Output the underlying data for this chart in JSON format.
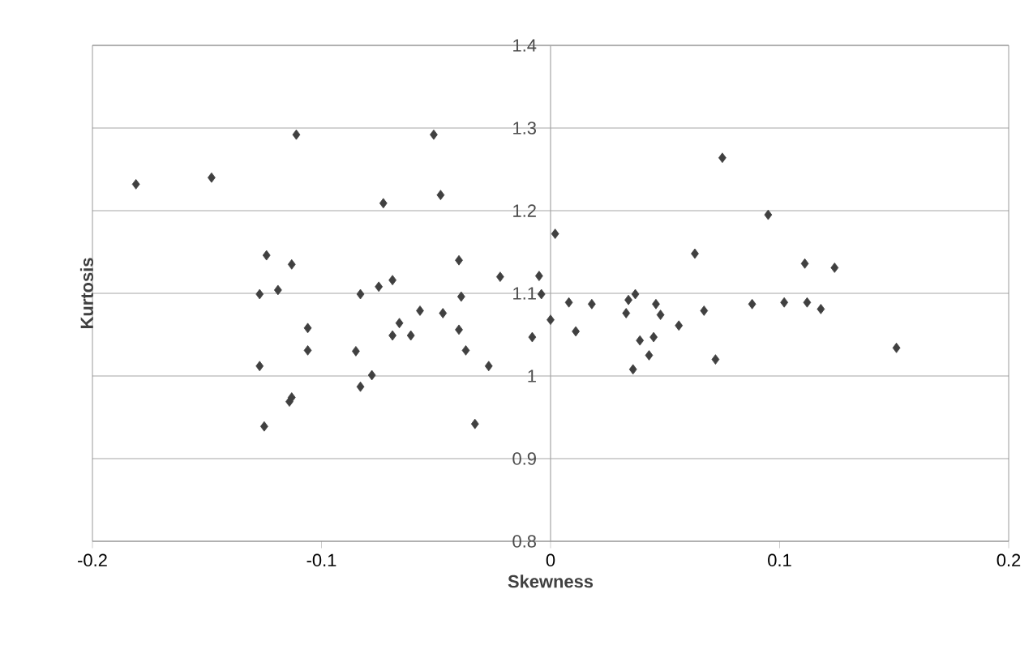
{
  "chart_data": {
    "type": "scatter",
    "xlabel": "Skewness",
    "ylabel": "Kurtosis",
    "xlim": [
      -0.2,
      0.2
    ],
    "ylim": [
      0.8,
      1.4
    ],
    "xticks": [
      -0.2,
      -0.1,
      0,
      0.1,
      0.2
    ],
    "yticks": [
      0.8,
      0.9,
      1,
      1.1,
      1.2,
      1.3,
      1.4
    ],
    "grid": "y",
    "marker": "diamond",
    "series": [
      {
        "color": "#404040",
        "x": [
          -0.181,
          -0.148,
          -0.111,
          -0.051,
          -0.073,
          -0.048,
          -0.124,
          -0.113,
          -0.127,
          -0.119,
          -0.106,
          -0.106,
          -0.127,
          -0.125,
          -0.113,
          -0.114,
          -0.085,
          -0.083,
          -0.078,
          -0.083,
          -0.075,
          -0.069,
          -0.066,
          -0.069,
          -0.061,
          -0.057,
          -0.047,
          -0.04,
          -0.039,
          -0.04,
          -0.037,
          -0.027,
          -0.033,
          -0.022,
          -0.008,
          -0.005,
          -0.004,
          0.0,
          0.002,
          0.008,
          0.011,
          0.018,
          0.034,
          0.037,
          0.033,
          0.046,
          0.048,
          0.039,
          0.045,
          0.043,
          0.036,
          0.056,
          0.063,
          0.067,
          0.072,
          0.075,
          0.088,
          0.095,
          0.102,
          0.111,
          0.124,
          0.112,
          0.118,
          0.151
        ],
        "values": [
          1.232,
          1.24,
          1.292,
          1.292,
          1.209,
          1.219,
          1.146,
          1.135,
          1.099,
          1.104,
          1.058,
          1.031,
          1.012,
          0.939,
          0.974,
          0.969,
          1.03,
          0.987,
          1.001,
          1.099,
          1.108,
          1.116,
          1.064,
          1.049,
          1.049,
          1.079,
          1.076,
          1.14,
          1.096,
          1.056,
          1.031,
          1.012,
          0.942,
          1.12,
          1.047,
          1.121,
          1.099,
          1.068,
          1.172,
          1.089,
          1.054,
          1.087,
          1.092,
          1.099,
          1.076,
          1.087,
          1.074,
          1.043,
          1.047,
          1.025,
          1.008,
          1.061,
          1.148,
          1.079,
          1.02,
          1.264,
          1.087,
          1.195,
          1.089,
          1.136,
          1.131,
          1.089,
          1.081,
          1.034
        ]
      }
    ]
  }
}
